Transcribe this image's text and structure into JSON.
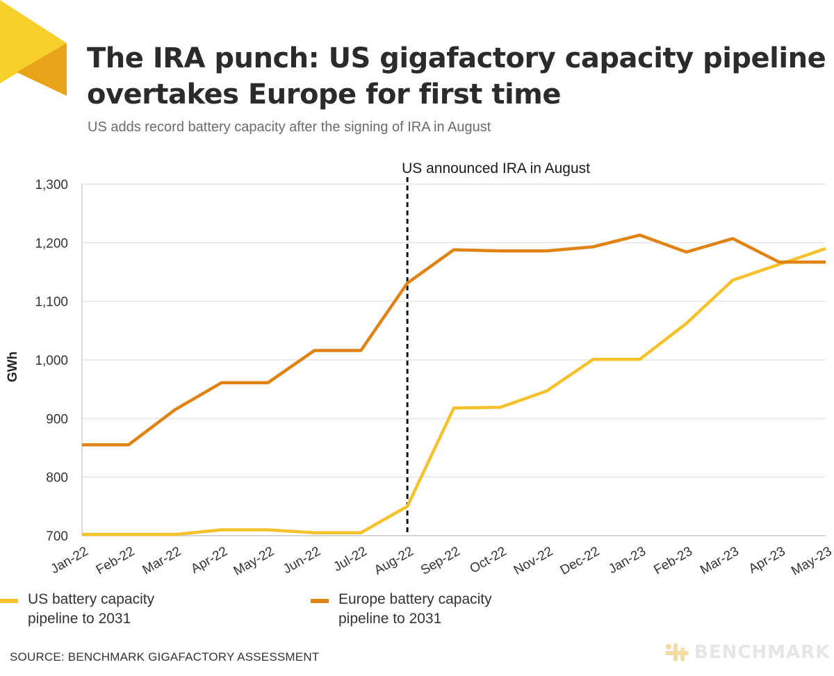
{
  "header": {
    "title": "The IRA punch: US gigafactory capacity pipeline overtakes Europe for first time",
    "subtitle": "US adds record battery capacity after the signing of IRA in August"
  },
  "colors": {
    "us": "#f5c22e",
    "europe": "#e08214",
    "logo_light": "#f7d02c",
    "logo_dark": "#e8a318",
    "grid": "#e4e4e4",
    "annotation_line": "#111111"
  },
  "chart_data": {
    "type": "line",
    "categories": [
      "Jan-22",
      "Feb-22",
      "Mar-22",
      "Apr-22",
      "May-22",
      "Jun-22",
      "Jul-22",
      "Aug-22",
      "Sep-22",
      "Oct-22",
      "Nov-22",
      "Dec-22",
      "Jan-23",
      "Feb-23",
      "Mar-23",
      "Apr-23",
      "May-23"
    ],
    "series": [
      {
        "name": "US battery capacity pipeline to 2031",
        "color": "#f5c22e",
        "values": [
          702,
          702,
          702,
          710,
          710,
          705,
          705,
          750,
          918,
          919,
          947,
          1001,
          1001,
          1062,
          1136,
          1163,
          1190
        ]
      },
      {
        "name": "Europe battery capacity pipeline to 2031",
        "color": "#e08214",
        "values": [
          855,
          855,
          915,
          961,
          961,
          1016,
          1016,
          1131,
          1188,
          1186,
          1186,
          1193,
          1213,
          1184,
          1207,
          1167,
          1167
        ]
      }
    ],
    "ylabel": "GWh",
    "xlabel": "",
    "ylim": [
      700,
      1300
    ],
    "yticks": [
      700,
      800,
      900,
      1000,
      1100,
      1200,
      1300
    ],
    "ytick_labels": [
      "700",
      "800",
      "900",
      "1,000",
      "1,100",
      "1,200",
      "1,300"
    ],
    "grid": true,
    "legend_position": "bottom",
    "annotation": {
      "label": "US announced IRA in August",
      "category": "Aug-22"
    }
  },
  "legend": {
    "us": "US battery capacity pipeline to 2031",
    "europe": "Europe battery capacity pipeline to 2031"
  },
  "footer": {
    "source": "SOURCE: BENCHMARK GIGAFACTORY ASSESSMENT",
    "brand": "BENCHMARK"
  }
}
